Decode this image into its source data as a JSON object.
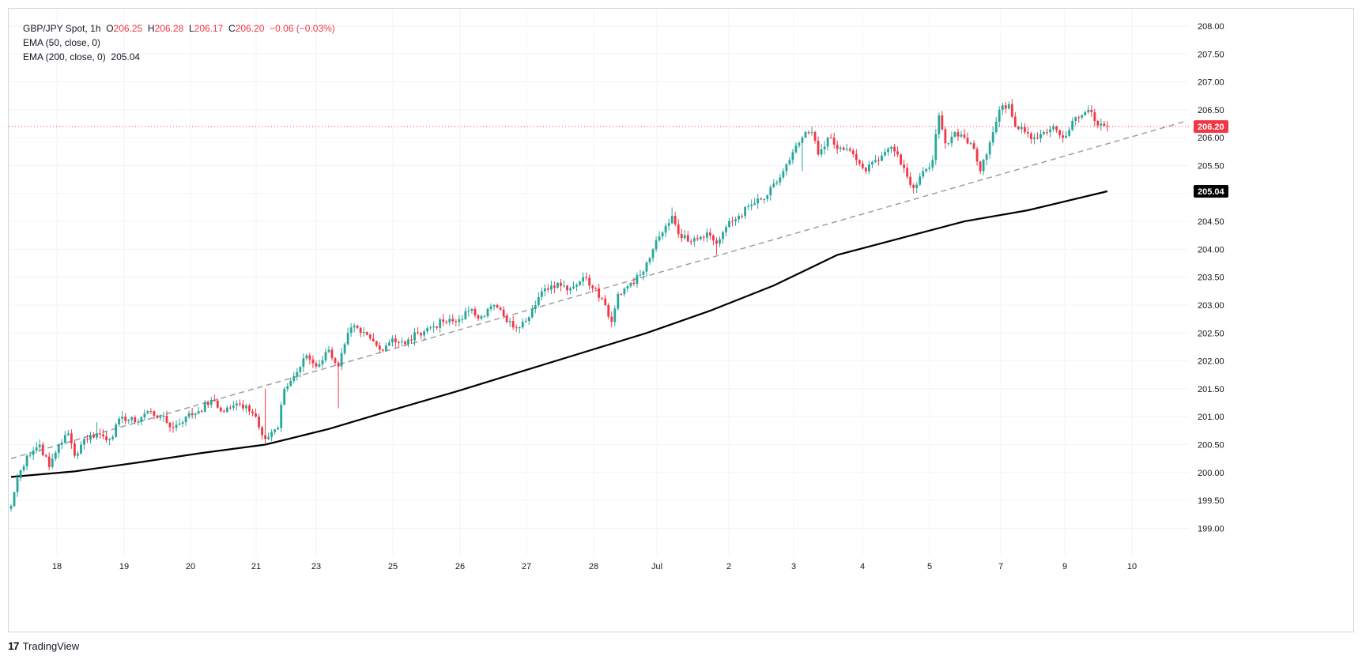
{
  "header": {
    "symbol": "GBP/JPY Spot, 1h",
    "o_label": "O",
    "o_value": "206.25",
    "h_label": "H",
    "h_value": "206.28",
    "l_label": "L",
    "l_value": "206.17",
    "c_label": "C",
    "c_value": "206.20",
    "change": "−0.06 (−0.03%)",
    "ema50_label": "EMA (50, close, 0)",
    "ema200_label": "EMA (200, close, 0)",
    "ema200_value": "205.04"
  },
  "footer": {
    "brand": "TradingView",
    "logo_glyph": "17"
  },
  "colors": {
    "up": "#26a69a",
    "down": "#f23645",
    "ema200": "#000000",
    "trendline": "#9e9e9e",
    "grid": "#f0f3fa"
  },
  "chart_data": {
    "type": "candlestick",
    "symbol": "GBP/JPY Spot",
    "interval": "1h",
    "ylim": [
      198.4,
      208.3
    ],
    "y_ticks": [
      "208.00",
      "207.50",
      "207.00",
      "206.50",
      "206.00",
      "205.50",
      "205.00",
      "204.50",
      "204.00",
      "203.50",
      "203.00",
      "202.50",
      "202.00",
      "201.50",
      "201.00",
      "200.50",
      "200.00",
      "199.50",
      "199.00"
    ],
    "x_ticks": [
      "18",
      "19",
      "20",
      "21",
      "23",
      "25",
      "26",
      "27",
      "28",
      "Jul",
      "2",
      "3",
      "4",
      "5",
      "7",
      "9",
      "10"
    ],
    "last_price_label": "206.20",
    "ema200_label": "205.04",
    "anchors": [
      {
        "x": 0,
        "p": 199.4
      },
      {
        "x": 2,
        "p": 199.9
      },
      {
        "x": 5,
        "p": 200.3
      },
      {
        "x": 9,
        "p": 200.5
      },
      {
        "x": 12,
        "p": 200.1
      },
      {
        "x": 15,
        "p": 200.5
      },
      {
        "x": 18,
        "p": 200.7
      },
      {
        "x": 20,
        "p": 200.3
      },
      {
        "x": 23,
        "p": 200.6
      },
      {
        "x": 27,
        "p": 200.7
      },
      {
        "x": 31,
        "p": 200.6
      },
      {
        "x": 35,
        "p": 201.0
      },
      {
        "x": 39,
        "p": 200.9
      },
      {
        "x": 43,
        "p": 201.1
      },
      {
        "x": 47,
        "p": 201.0
      },
      {
        "x": 51,
        "p": 200.8
      },
      {
        "x": 55,
        "p": 201.0
      },
      {
        "x": 59,
        "p": 201.1
      },
      {
        "x": 63,
        "p": 201.3
      },
      {
        "x": 66,
        "p": 201.1
      },
      {
        "x": 70,
        "p": 201.2
      },
      {
        "x": 74,
        "p": 201.2
      },
      {
        "x": 77,
        "p": 201.0
      },
      {
        "x": 80,
        "p": 200.6
      },
      {
        "x": 84,
        "p": 200.8
      },
      {
        "x": 86,
        "p": 201.5
      },
      {
        "x": 90,
        "p": 201.8
      },
      {
        "x": 93,
        "p": 202.1
      },
      {
        "x": 96,
        "p": 201.9
      },
      {
        "x": 100,
        "p": 202.2
      },
      {
        "x": 103,
        "p": 201.9
      },
      {
        "x": 105,
        "p": 202.3
      },
      {
        "x": 107,
        "p": 202.6
      },
      {
        "x": 110,
        "p": 202.5
      },
      {
        "x": 113,
        "p": 202.4
      },
      {
        "x": 116,
        "p": 202.2
      },
      {
        "x": 120,
        "p": 202.4
      },
      {
        "x": 124,
        "p": 202.3
      },
      {
        "x": 128,
        "p": 202.5
      },
      {
        "x": 132,
        "p": 202.6
      },
      {
        "x": 136,
        "p": 202.7
      },
      {
        "x": 140,
        "p": 202.7
      },
      {
        "x": 144,
        "p": 202.9
      },
      {
        "x": 148,
        "p": 202.8
      },
      {
        "x": 152,
        "p": 203.0
      },
      {
        "x": 155,
        "p": 202.8
      },
      {
        "x": 158,
        "p": 202.6
      },
      {
        "x": 161,
        "p": 202.7
      },
      {
        "x": 165,
        "p": 203.0
      },
      {
        "x": 168,
        "p": 203.3
      },
      {
        "x": 172,
        "p": 203.4
      },
      {
        "x": 176,
        "p": 203.3
      },
      {
        "x": 180,
        "p": 203.5
      },
      {
        "x": 184,
        "p": 203.3
      },
      {
        "x": 187,
        "p": 203.0
      },
      {
        "x": 189,
        "p": 202.7
      },
      {
        "x": 191,
        "p": 203.2
      },
      {
        "x": 195,
        "p": 203.4
      },
      {
        "x": 199,
        "p": 203.6
      },
      {
        "x": 202,
        "p": 204.0
      },
      {
        "x": 205,
        "p": 204.3
      },
      {
        "x": 208,
        "p": 204.6
      },
      {
        "x": 211,
        "p": 204.2
      },
      {
        "x": 215,
        "p": 204.2
      },
      {
        "x": 219,
        "p": 204.3
      },
      {
        "x": 222,
        "p": 204.1
      },
      {
        "x": 225,
        "p": 204.4
      },
      {
        "x": 229,
        "p": 204.6
      },
      {
        "x": 233,
        "p": 204.8
      },
      {
        "x": 237,
        "p": 204.9
      },
      {
        "x": 241,
        "p": 205.2
      },
      {
        "x": 245,
        "p": 205.6
      },
      {
        "x": 249,
        "p": 206.0
      },
      {
        "x": 252,
        "p": 206.1
      },
      {
        "x": 254,
        "p": 205.7
      },
      {
        "x": 257,
        "p": 206.0
      },
      {
        "x": 260,
        "p": 205.8
      },
      {
        "x": 263,
        "p": 205.8
      },
      {
        "x": 266,
        "p": 205.6
      },
      {
        "x": 269,
        "p": 205.4
      },
      {
        "x": 272,
        "p": 205.6
      },
      {
        "x": 276,
        "p": 205.8
      },
      {
        "x": 279,
        "p": 205.7
      },
      {
        "x": 282,
        "p": 205.3
      },
      {
        "x": 284,
        "p": 205.1
      },
      {
        "x": 287,
        "p": 205.4
      },
      {
        "x": 290,
        "p": 205.6
      },
      {
        "x": 292,
        "p": 206.4
      },
      {
        "x": 294,
        "p": 205.9
      },
      {
        "x": 297,
        "p": 206.1
      },
      {
        "x": 300,
        "p": 206.0
      },
      {
        "x": 303,
        "p": 205.8
      },
      {
        "x": 305,
        "p": 205.4
      },
      {
        "x": 307,
        "p": 205.7
      },
      {
        "x": 309,
        "p": 206.1
      },
      {
        "x": 311,
        "p": 206.5
      },
      {
        "x": 314,
        "p": 206.6
      },
      {
        "x": 316,
        "p": 206.2
      },
      {
        "x": 319,
        "p": 206.1
      },
      {
        "x": 322,
        "p": 206.0
      },
      {
        "x": 325,
        "p": 206.1
      },
      {
        "x": 328,
        "p": 206.2
      },
      {
        "x": 331,
        "p": 206.0
      },
      {
        "x": 334,
        "p": 206.3
      },
      {
        "x": 337,
        "p": 206.4
      },
      {
        "x": 339,
        "p": 206.5
      },
      {
        "x": 341,
        "p": 206.3
      },
      {
        "x": 343,
        "p": 206.25
      },
      {
        "x": 345,
        "p": 206.2
      }
    ],
    "lows_override": [
      {
        "x": 103,
        "p": 201.15
      },
      {
        "x": 80,
        "p": 200.5
      },
      {
        "x": 249,
        "p": 205.4
      },
      {
        "x": 284,
        "p": 205.0
      },
      {
        "x": 305,
        "p": 205.35
      },
      {
        "x": 222,
        "p": 203.9
      },
      {
        "x": 189,
        "p": 202.6
      },
      {
        "x": 0,
        "p": 199.3
      }
    ],
    "highs_override": [
      {
        "x": 314,
        "p": 206.65
      },
      {
        "x": 339,
        "p": 206.58
      },
      {
        "x": 292,
        "p": 206.45
      },
      {
        "x": 252,
        "p": 206.2
      },
      {
        "x": 208,
        "p": 204.75
      },
      {
        "x": 80,
        "p": 201.5
      },
      {
        "x": 27,
        "p": 200.9
      }
    ],
    "ema200": [
      {
        "x": 0,
        "p": 199.92
      },
      {
        "x": 20,
        "p": 200.02
      },
      {
        "x": 40,
        "p": 200.18
      },
      {
        "x": 60,
        "p": 200.35
      },
      {
        "x": 80,
        "p": 200.5
      },
      {
        "x": 100,
        "p": 200.78
      },
      {
        "x": 120,
        "p": 201.12
      },
      {
        "x": 140,
        "p": 201.45
      },
      {
        "x": 160,
        "p": 201.8
      },
      {
        "x": 180,
        "p": 202.15
      },
      {
        "x": 200,
        "p": 202.5
      },
      {
        "x": 220,
        "p": 202.9
      },
      {
        "x": 240,
        "p": 203.35
      },
      {
        "x": 260,
        "p": 203.9
      },
      {
        "x": 280,
        "p": 204.2
      },
      {
        "x": 300,
        "p": 204.5
      },
      {
        "x": 320,
        "p": 204.7
      },
      {
        "x": 345,
        "p": 205.04
      }
    ],
    "trendline": [
      {
        "x": 0,
        "p": 200.25
      },
      {
        "x": 370,
        "p": 206.3
      }
    ]
  }
}
